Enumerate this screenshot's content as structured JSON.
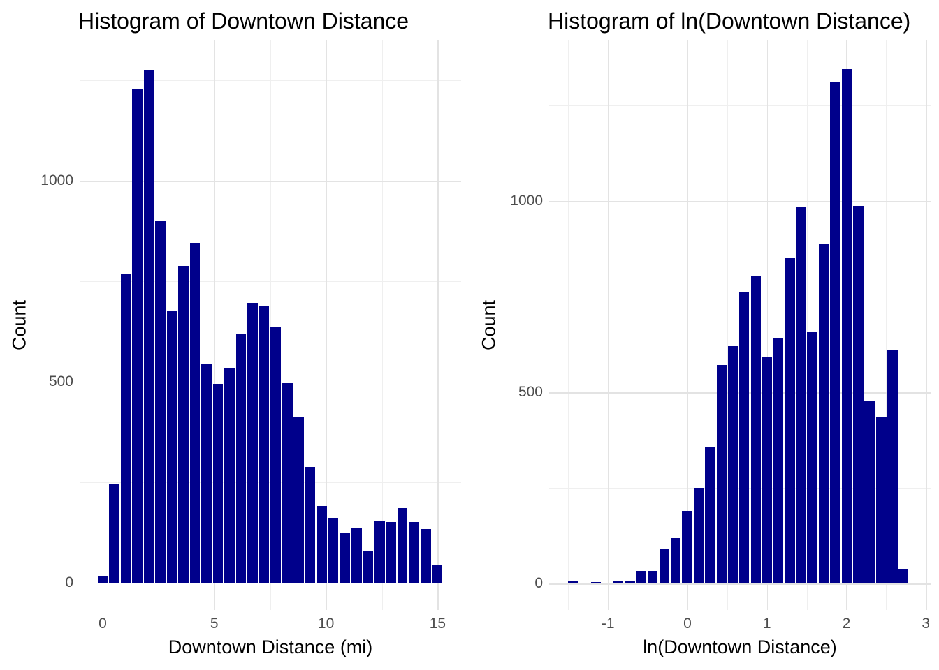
{
  "figure": {
    "background": "#FFFFFF"
  },
  "style": {
    "bar_color": "#00008B",
    "grid_major_color": "#E3E3E3",
    "grid_minor_color": "#EFEFEF",
    "tick_label_color": "#4D4D4D",
    "axis_title_color": "#000000",
    "title_color": "#000000"
  },
  "chart_data": [
    {
      "type": "bar",
      "title": "Histogram of Downtown Distance",
      "xlabel": "Downtown Distance (mi)",
      "ylabel": "Count",
      "legend": false,
      "grid": true,
      "bar_color": "#00008B",
      "x_ticks": [
        0,
        5,
        10,
        15
      ],
      "x_minor_ticks": [
        2.5,
        7.5,
        12.5
      ],
      "y_ticks": [
        0,
        500,
        1000
      ],
      "y_minor_ticks": [
        250,
        750,
        1250
      ],
      "xlim": [
        -1.03,
        16.05
      ],
      "ylim": [
        -68,
        1351
      ],
      "binwidth": 0.517,
      "bin_centers": [
        0,
        0.52,
        1.03,
        1.55,
        2.07,
        2.58,
        3.1,
        3.62,
        4.13,
        4.65,
        5.17,
        5.68,
        6.2,
        6.72,
        7.23,
        7.75,
        8.27,
        8.78,
        9.3,
        9.82,
        10.33,
        10.85,
        11.37,
        11.88,
        12.4,
        12.92,
        13.43,
        13.95,
        14.47,
        14.98
      ],
      "counts": [
        15,
        245,
        770,
        1230,
        1277,
        901,
        677,
        788,
        845,
        545,
        495,
        535,
        620,
        697,
        688,
        637,
        496,
        412,
        288,
        191,
        162,
        123,
        136,
        78,
        152,
        150,
        186,
        150,
        134,
        45
      ]
    },
    {
      "type": "bar",
      "title": "Histogram of ln(Downtown Distance)",
      "xlabel": "ln(Downtown Distance)",
      "ylabel": "Count",
      "legend": false,
      "grid": true,
      "bar_color": "#00008B",
      "x_ticks": [
        -1,
        0,
        1,
        2,
        3
      ],
      "x_minor_ticks": [
        -1.5,
        -0.5,
        0.5,
        1.5,
        2.5
      ],
      "y_ticks": [
        0,
        500,
        1000
      ],
      "y_minor_ticks": [
        250,
        750,
        1250
      ],
      "xlim": [
        -1.74,
        3.06
      ],
      "ylim": [
        -69,
        1421
      ],
      "binwidth": 0.1434,
      "bin_centers": [
        -1.44,
        -1.3,
        -1.15,
        -1.01,
        -0.87,
        -0.72,
        -0.58,
        -0.44,
        -0.29,
        -0.15,
        -0.01,
        0.14,
        0.28,
        0.43,
        0.57,
        0.71,
        0.86,
        1.0,
        1.14,
        1.29,
        1.43,
        1.57,
        1.72,
        1.86,
        2.01,
        2.15,
        2.29,
        2.44,
        2.58,
        2.72
      ],
      "counts": [
        8,
        0,
        4,
        0,
        6,
        7,
        33,
        33,
        91,
        118,
        190,
        250,
        358,
        571,
        620,
        763,
        805,
        592,
        640,
        850,
        985,
        659,
        887,
        1312,
        1345,
        987,
        476,
        437,
        609,
        36
      ]
    }
  ]
}
